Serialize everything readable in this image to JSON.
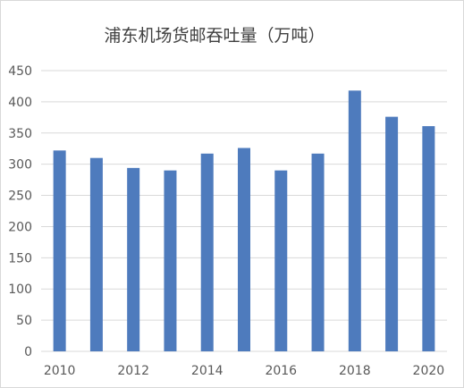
{
  "chart_data": {
    "type": "bar",
    "title": "浦东机场货邮吞吐量（万吨）",
    "xlabel": "",
    "ylabel": "",
    "categories": [
      "2010",
      "2011",
      "2012",
      "2013",
      "2014",
      "2015",
      "2016",
      "2017",
      "2018",
      "2019",
      "2020"
    ],
    "x_tick_labels": [
      "2010",
      "2012",
      "2014",
      "2016",
      "2018",
      "2020"
    ],
    "series": [
      {
        "values": [
          322,
          310,
          294,
          290,
          317,
          326,
          290,
          317,
          418,
          376,
          361
        ]
      }
    ],
    "ylim": [
      0,
      450
    ],
    "y_ticks": [
      "0",
      "50",
      "100",
      "150",
      "200",
      "250",
      "300",
      "350",
      "400",
      "450"
    ],
    "grid": true,
    "legend": "none",
    "bar_color": "#4e7bbd",
    "grid_color": "#d9d9d9"
  }
}
